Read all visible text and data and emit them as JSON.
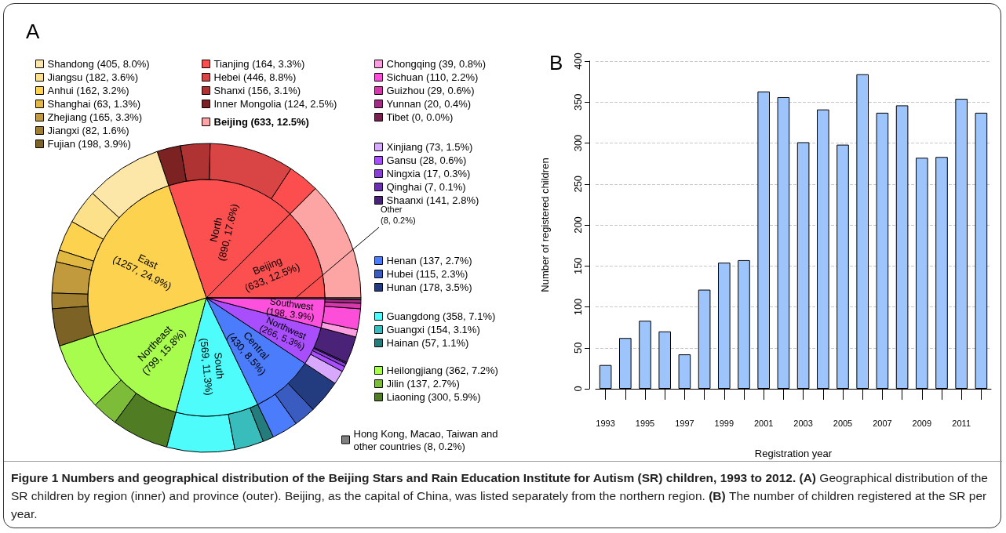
{
  "chart_data": [
    {
      "type": "pie",
      "title": "A",
      "categories": [
        "Beijing",
        "North",
        "East",
        "Northeast",
        "South",
        "Central",
        "Northwest",
        "Southwest",
        "Other"
      ],
      "values": [
        633,
        890,
        1257,
        799,
        569,
        430,
        266,
        198,
        8
      ],
      "colors": [
        "#fc5050",
        "#fc5050",
        "#fdd24f",
        "#a8fc4e",
        "#4efcfc",
        "#4a7cfc",
        "#a84efc",
        "#fc50dd",
        "#808080"
      ],
      "value_labels": [
        "(633, 12.5%)",
        "(890, 17.6%)",
        "(1257, 24.9%)",
        "(799, 15.8%)",
        "(569, 11.3%)",
        "(430, 8.5%)",
        "(266, 5.3%)",
        "(198, 3.9%)",
        "(8, 0.2%)"
      ],
      "annotations": [
        "Figure 1 Numbers and geographical distribution of the Beijing Stars and Rain Education Institute for Autism (SR) children, 1993 to 2012.",
        "(A)",
        "Geographical distribution of the SR children by region (inner) and province (outer). Beijing, as the capital of China, was listed separately from the northern region.",
        "(B)",
        "The number of children registered at the SR per year."
      ]
    },
    {
      "type": "donut",
      "legend": "top",
      "categories": [
        "Beijing",
        "Tianjing",
        "Hebei",
        "Shanxi",
        "Inner Mongolia",
        "Shandong",
        "Jiangsu",
        "Anhui",
        "Shanghai",
        "Zhejiang",
        "Jiangxi",
        "Fujian",
        "Heilongjiang",
        "Jilin",
        "Liaoning",
        "Guangdong",
        "Guangxi",
        "Hainan",
        "Henan",
        "Hubei",
        "Hunan",
        "Xinjiang",
        "Gansu",
        "Ningxia",
        "Qinghai",
        "Shaanxi",
        "Chongqing",
        "Sichuan",
        "Guizhou",
        "Yunnan",
        "Tibet",
        "Hong Kong, Macao, Taiwan and other countries"
      ],
      "values": [
        633,
        164,
        446,
        156,
        124,
        405,
        182,
        162,
        63,
        165,
        82,
        198,
        362,
        137,
        300,
        358,
        154,
        57,
        137,
        115,
        178,
        73,
        28,
        17,
        7,
        141,
        39,
        110,
        29,
        20,
        0,
        8
      ],
      "colors": [
        "#fda4a4",
        "#fc4e4e",
        "#d94444",
        "#b03333",
        "#7d2222",
        "#fde7a8",
        "#fde08a",
        "#fdd24f",
        "#e0b842",
        "#c09a3c",
        "#a08030",
        "#7d6225",
        "#a8fc4e",
        "#7cbc38",
        "#507c24",
        "#4efcfc",
        "#38bcbc",
        "#247c7c",
        "#4a7cfc",
        "#3a5cc0",
        "#233c80",
        "#d8a8fc",
        "#a84efc",
        "#8a3ed8",
        "#6a30b0",
        "#4a2278",
        "#fc9ee0",
        "#fc4ed8",
        "#d43aaa",
        "#a42a88",
        "#7a2050",
        "#808080"
      ],
      "value_labels": [
        "(633, 12.5%)",
        "(164, 3.3%)",
        "(446, 8.8%)",
        "(156, 3.1%)",
        "(124, 2.5%)",
        "(405, 8.0%)",
        "(182, 3.6%)",
        "(162, 3.2%)",
        "(63, 1.3%)",
        "(165, 3.3%)",
        "(82, 1.6%)",
        "(198, 3.9%)",
        "(362, 7.2%)",
        "(137, 2.7%)",
        "(300, 5.9%)",
        "(358, 7.1%)",
        "(154, 3.1%)",
        "(57, 1.1%)",
        "(137, 2.7%)",
        "(115, 2.3%)",
        "(178, 3.5%)",
        "(73, 1.5%)",
        "(28, 0.6%)",
        "(17, 0.3%)",
        "(7, 0.1%)",
        "(141, 2.8%)",
        "(39, 0.8%)",
        "(110, 2.2%)",
        "(29, 0.6%)",
        "(20, 0.4%)",
        "(0, 0.0%)",
        "(8, 0.2%)"
      ]
    },
    {
      "type": "bar",
      "title": "B",
      "xlabel": "Registration year",
      "ylabel": "Number of registered children",
      "color": "#9ec4fc",
      "grid": "y",
      "categories": [
        "1993",
        null,
        "1995",
        null,
        "1997",
        null,
        "1999",
        null,
        "2001",
        null,
        "2003",
        null,
        "2005",
        null,
        "2007",
        null,
        "2009",
        null,
        "2011",
        null
      ],
      "values": [
        29,
        62,
        83,
        70,
        42,
        121,
        154,
        157,
        363,
        356,
        301,
        341,
        298,
        384,
        337,
        346,
        282,
        283,
        354,
        337
      ],
      "ylim": [
        0,
        400
      ],
      "yticks": [
        0,
        50,
        100,
        150,
        200,
        250,
        300,
        350,
        400
      ]
    }
  ]
}
